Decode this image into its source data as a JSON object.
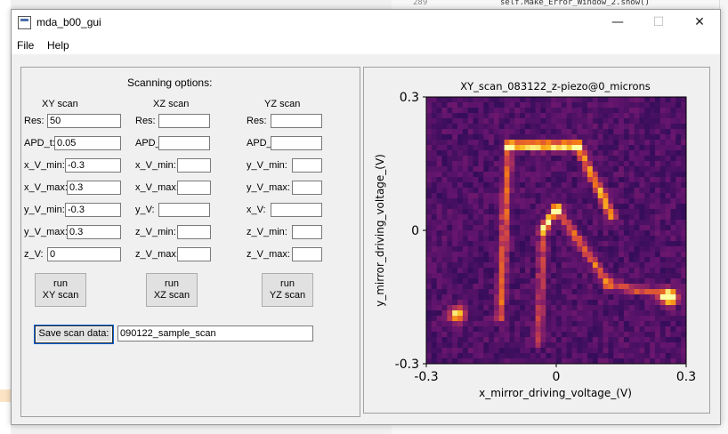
{
  "window": {
    "title": "mda_b00_gui",
    "minimize_glyph": "—",
    "maximize_glyph": "☐",
    "close_glyph": "✕"
  },
  "background_editor": {
    "line_number": "289",
    "code_snippet": "self.Make_Error_Window_2.show()"
  },
  "menu": {
    "file": "File",
    "help": "Help"
  },
  "scanning": {
    "heading": "Scanning options:",
    "xy": {
      "title": "XY scan",
      "fields": [
        {
          "label": "Res:",
          "value": "50"
        },
        {
          "label": "APD_t:",
          "value": "0.05"
        },
        {
          "label": "x_V_min:",
          "value": "-0.3"
        },
        {
          "label": "x_V_max:",
          "value": "0.3"
        },
        {
          "label": "y_V_min:",
          "value": "-0.3"
        },
        {
          "label": "y_V_max:",
          "value": "0.3"
        },
        {
          "label": "z_V:",
          "value": "0"
        }
      ],
      "button_line1": "run",
      "button_line2": "XY scan"
    },
    "xz": {
      "title": "XZ scan",
      "fields": [
        {
          "label": "Res:",
          "value": ""
        },
        {
          "label": "APD_t:",
          "value": ""
        },
        {
          "label": "x_V_min:",
          "value": ""
        },
        {
          "label": "x_V_max:",
          "value": ""
        },
        {
          "label": "y_V:",
          "value": ""
        },
        {
          "label": "z_V_min:",
          "value": ""
        },
        {
          "label": "z_V_max:",
          "value": ""
        }
      ],
      "button_line1": "run",
      "button_line2": "XZ scan"
    },
    "yz": {
      "title": "YZ scan",
      "fields": [
        {
          "label": "Res:",
          "value": ""
        },
        {
          "label": "APD_t:",
          "value": ""
        },
        {
          "label": "y_V_min:",
          "value": ""
        },
        {
          "label": "y_V_max:",
          "value": ""
        },
        {
          "label": "x_V:",
          "value": ""
        },
        {
          "label": "z_V_min:",
          "value": ""
        },
        {
          "label": "z_V_max:",
          "value": ""
        }
      ],
      "button_line1": "run",
      "button_line2": "YZ scan"
    },
    "save_button": "Save scan data:",
    "save_filename": "090122_sample_scan"
  },
  "chart_data": {
    "type": "heatmap",
    "title": "XY_scan_083122_z-piezo@0_microns",
    "xlabel": "x_mirror_driving_voltage_(V)",
    "ylabel": "y_mirror_driving_voltage_(V)",
    "xlim": [
      -0.3,
      0.3
    ],
    "ylim": [
      -0.3,
      0.3
    ],
    "x_ticks": [
      "-0.3",
      "0",
      "0.3"
    ],
    "y_ticks": [
      "0.3",
      "0",
      "-0.3"
    ],
    "resolution": 50,
    "colormap": "inferno",
    "features": [
      {
        "kind": "segment",
        "from": [
          -0.11,
          0.19
        ],
        "to": [
          0.05,
          0.19
        ],
        "intensity": 0.85
      },
      {
        "kind": "segment",
        "from": [
          0.05,
          0.19
        ],
        "to": [
          0.13,
          0.03
        ],
        "intensity": 0.6
      },
      {
        "kind": "segment",
        "from": [
          -0.11,
          0.19
        ],
        "to": [
          -0.13,
          -0.2
        ],
        "intensity": 0.45
      },
      {
        "kind": "segment",
        "from": [
          -0.03,
          0.0
        ],
        "to": [
          0.0,
          0.05
        ],
        "intensity": 0.7
      },
      {
        "kind": "segment",
        "from": [
          0.0,
          0.05
        ],
        "to": [
          0.12,
          -0.12
        ],
        "intensity": 0.45
      },
      {
        "kind": "segment",
        "from": [
          0.12,
          -0.12
        ],
        "to": [
          0.27,
          -0.15
        ],
        "intensity": 0.4
      },
      {
        "kind": "segment",
        "from": [
          -0.03,
          0.0
        ],
        "to": [
          -0.04,
          -0.25
        ],
        "intensity": 0.35
      },
      {
        "kind": "spot",
        "at": [
          -0.23,
          -0.19
        ],
        "intensity": 0.75
      },
      {
        "kind": "spot",
        "at": [
          0.26,
          -0.15
        ],
        "intensity": 1.0
      }
    ]
  }
}
